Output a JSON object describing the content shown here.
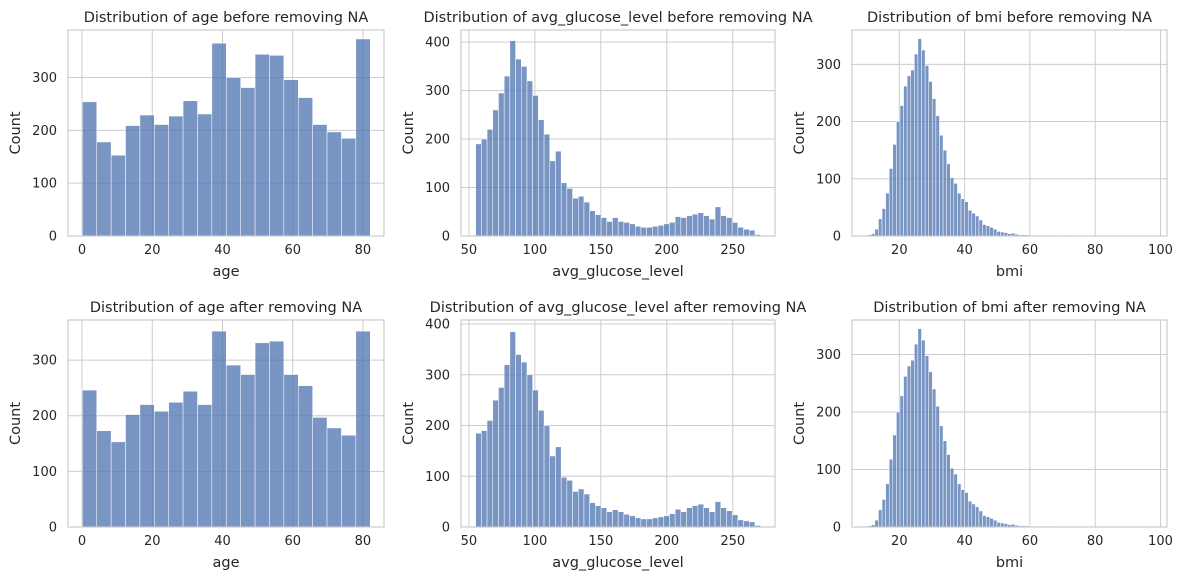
{
  "colors": {
    "bar": "#4c72b0",
    "grid": "#cccccc",
    "background": "#ffffff",
    "text": "#262626"
  },
  "chart_data": [
    {
      "type": "bar",
      "title": "Distribution of age before removing NA",
      "xlabel": "age",
      "ylabel": "Count",
      "xlim": [
        -4,
        86
      ],
      "ylim": [
        0,
        390
      ],
      "xticks": [
        0,
        20,
        40,
        60,
        80
      ],
      "yticks": [
        0,
        100,
        200,
        300
      ],
      "grid": true,
      "bin_start": 0.08,
      "bin_width": 4.1,
      "values": [
        254,
        178,
        153,
        209,
        229,
        211,
        227,
        256,
        231,
        365,
        300,
        281,
        344,
        342,
        296,
        262,
        211,
        197,
        185,
        373
      ]
    },
    {
      "type": "bar",
      "title": "Distribution of avg_glucose_level before removing NA",
      "xlabel": "avg_glucose_level",
      "ylabel": "Count",
      "xlim": [
        44,
        282
      ],
      "ylim": [
        0,
        425
      ],
      "xticks": [
        50,
        100,
        150,
        200,
        250
      ],
      "yticks": [
        0,
        100,
        200,
        300,
        400
      ],
      "grid": true,
      "bin_start": 55.12,
      "bin_width": 4.32,
      "values": [
        190,
        200,
        220,
        260,
        295,
        330,
        403,
        365,
        350,
        320,
        290,
        240,
        210,
        155,
        175,
        110,
        98,
        78,
        82,
        70,
        52,
        44,
        38,
        30,
        38,
        30,
        28,
        25,
        20,
        18,
        18,
        20,
        22,
        25,
        28,
        40,
        38,
        42,
        45,
        48,
        42,
        35,
        60,
        42,
        38,
        28,
        18,
        14,
        12,
        3
      ]
    },
    {
      "type": "bar",
      "title": "Distribution of bmi before removing NA",
      "xlabel": "bmi",
      "ylabel": "Count",
      "xlim": [
        5.5,
        102
      ],
      "ylim": [
        0,
        360
      ],
      "xticks": [
        20,
        40,
        60,
        80,
        100
      ],
      "yticks": [
        0,
        100,
        200,
        300
      ],
      "grid": true,
      "bin_start": 10.3,
      "bin_width": 1.1,
      "values": [
        2,
        4,
        12,
        30,
        48,
        75,
        118,
        160,
        200,
        228,
        262,
        280,
        290,
        318,
        345,
        325,
        298,
        270,
        240,
        210,
        176,
        150,
        126,
        102,
        92,
        75,
        65,
        60,
        45,
        40,
        35,
        28,
        20,
        18,
        15,
        12,
        8,
        7,
        6,
        4,
        5,
        3,
        2,
        2,
        2,
        1,
        1,
        1,
        1,
        1,
        1,
        1,
        1,
        0,
        1,
        1,
        0,
        1,
        0,
        1,
        0,
        0,
        1,
        0,
        0,
        0,
        1,
        0,
        0,
        0,
        0,
        0,
        0,
        0,
        0,
        0,
        0,
        0,
        1
      ]
    },
    {
      "type": "bar",
      "title": "Distribution of age after removing NA",
      "xlabel": "age",
      "ylabel": "Count",
      "xlim": [
        -4,
        86
      ],
      "ylim": [
        0,
        372
      ],
      "xticks": [
        0,
        20,
        40,
        60,
        80
      ],
      "yticks": [
        0,
        100,
        200,
        300
      ],
      "grid": true,
      "bin_start": 0.08,
      "bin_width": 4.1,
      "values": [
        246,
        173,
        153,
        202,
        220,
        208,
        224,
        244,
        220,
        352,
        291,
        274,
        331,
        334,
        274,
        254,
        197,
        178,
        165,
        352
      ]
    },
    {
      "type": "bar",
      "title": "Distribution of avg_glucose_level after removing NA",
      "xlabel": "avg_glucose_level",
      "ylabel": "Count",
      "xlim": [
        44,
        282
      ],
      "ylim": [
        0,
        408
      ],
      "xticks": [
        50,
        100,
        150,
        200,
        250
      ],
      "yticks": [
        0,
        100,
        200,
        300,
        400
      ],
      "grid": true,
      "bin_start": 55.12,
      "bin_width": 4.32,
      "values": [
        185,
        190,
        210,
        250,
        275,
        320,
        385,
        340,
        325,
        300,
        270,
        230,
        200,
        140,
        158,
        98,
        92,
        70,
        75,
        65,
        48,
        42,
        38,
        30,
        34,
        30,
        25,
        22,
        18,
        16,
        16,
        18,
        20,
        22,
        26,
        35,
        30,
        38,
        42,
        45,
        38,
        30,
        50,
        38,
        32,
        24,
        14,
        12,
        10,
        3
      ]
    },
    {
      "type": "bar",
      "title": "Distribution of bmi after removing NA",
      "xlabel": "bmi",
      "ylabel": "Count",
      "xlim": [
        5.5,
        102
      ],
      "ylim": [
        0,
        360
      ],
      "xticks": [
        20,
        40,
        60,
        80,
        100
      ],
      "yticks": [
        0,
        100,
        200,
        300
      ],
      "grid": true,
      "bin_start": 10.3,
      "bin_width": 1.1,
      "values": [
        2,
        4,
        12,
        30,
        48,
        75,
        118,
        160,
        200,
        228,
        262,
        280,
        290,
        318,
        345,
        325,
        298,
        270,
        240,
        210,
        176,
        150,
        126,
        102,
        92,
        75,
        65,
        60,
        45,
        40,
        35,
        28,
        20,
        18,
        15,
        12,
        8,
        7,
        6,
        4,
        5,
        3,
        2,
        2,
        2,
        1,
        1,
        1,
        1,
        1,
        1,
        1,
        1,
        0,
        1,
        1,
        0,
        1,
        0,
        1,
        0,
        0,
        1,
        0,
        0,
        0,
        1,
        0,
        0,
        0,
        0,
        0,
        0,
        0,
        0,
        0,
        0,
        0,
        1
      ]
    }
  ]
}
